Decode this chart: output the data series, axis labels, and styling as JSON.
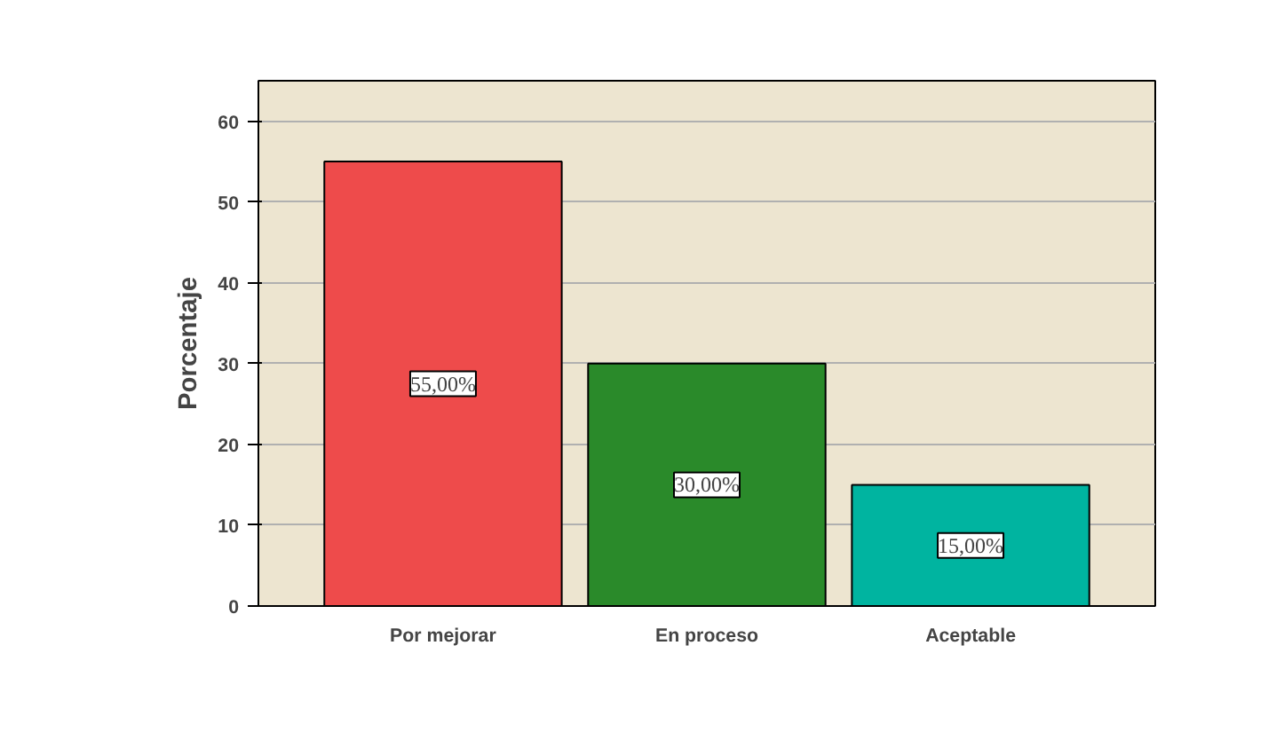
{
  "chart_data": {
    "type": "bar",
    "ylabel": "Porcentaje",
    "categories": [
      "Por mejorar",
      "En proceso",
      "Aceptable"
    ],
    "values": [
      55,
      30,
      15
    ],
    "colors": [
      "#ee4b4b",
      "#2a8a2a",
      "#00b4a0"
    ],
    "value_labels": [
      "55,00%",
      "30,00%",
      "15,00%"
    ],
    "ylim": [
      0,
      65
    ],
    "yticks": [
      0,
      10,
      20,
      30,
      40,
      50,
      60
    ],
    "grid": "y"
  }
}
